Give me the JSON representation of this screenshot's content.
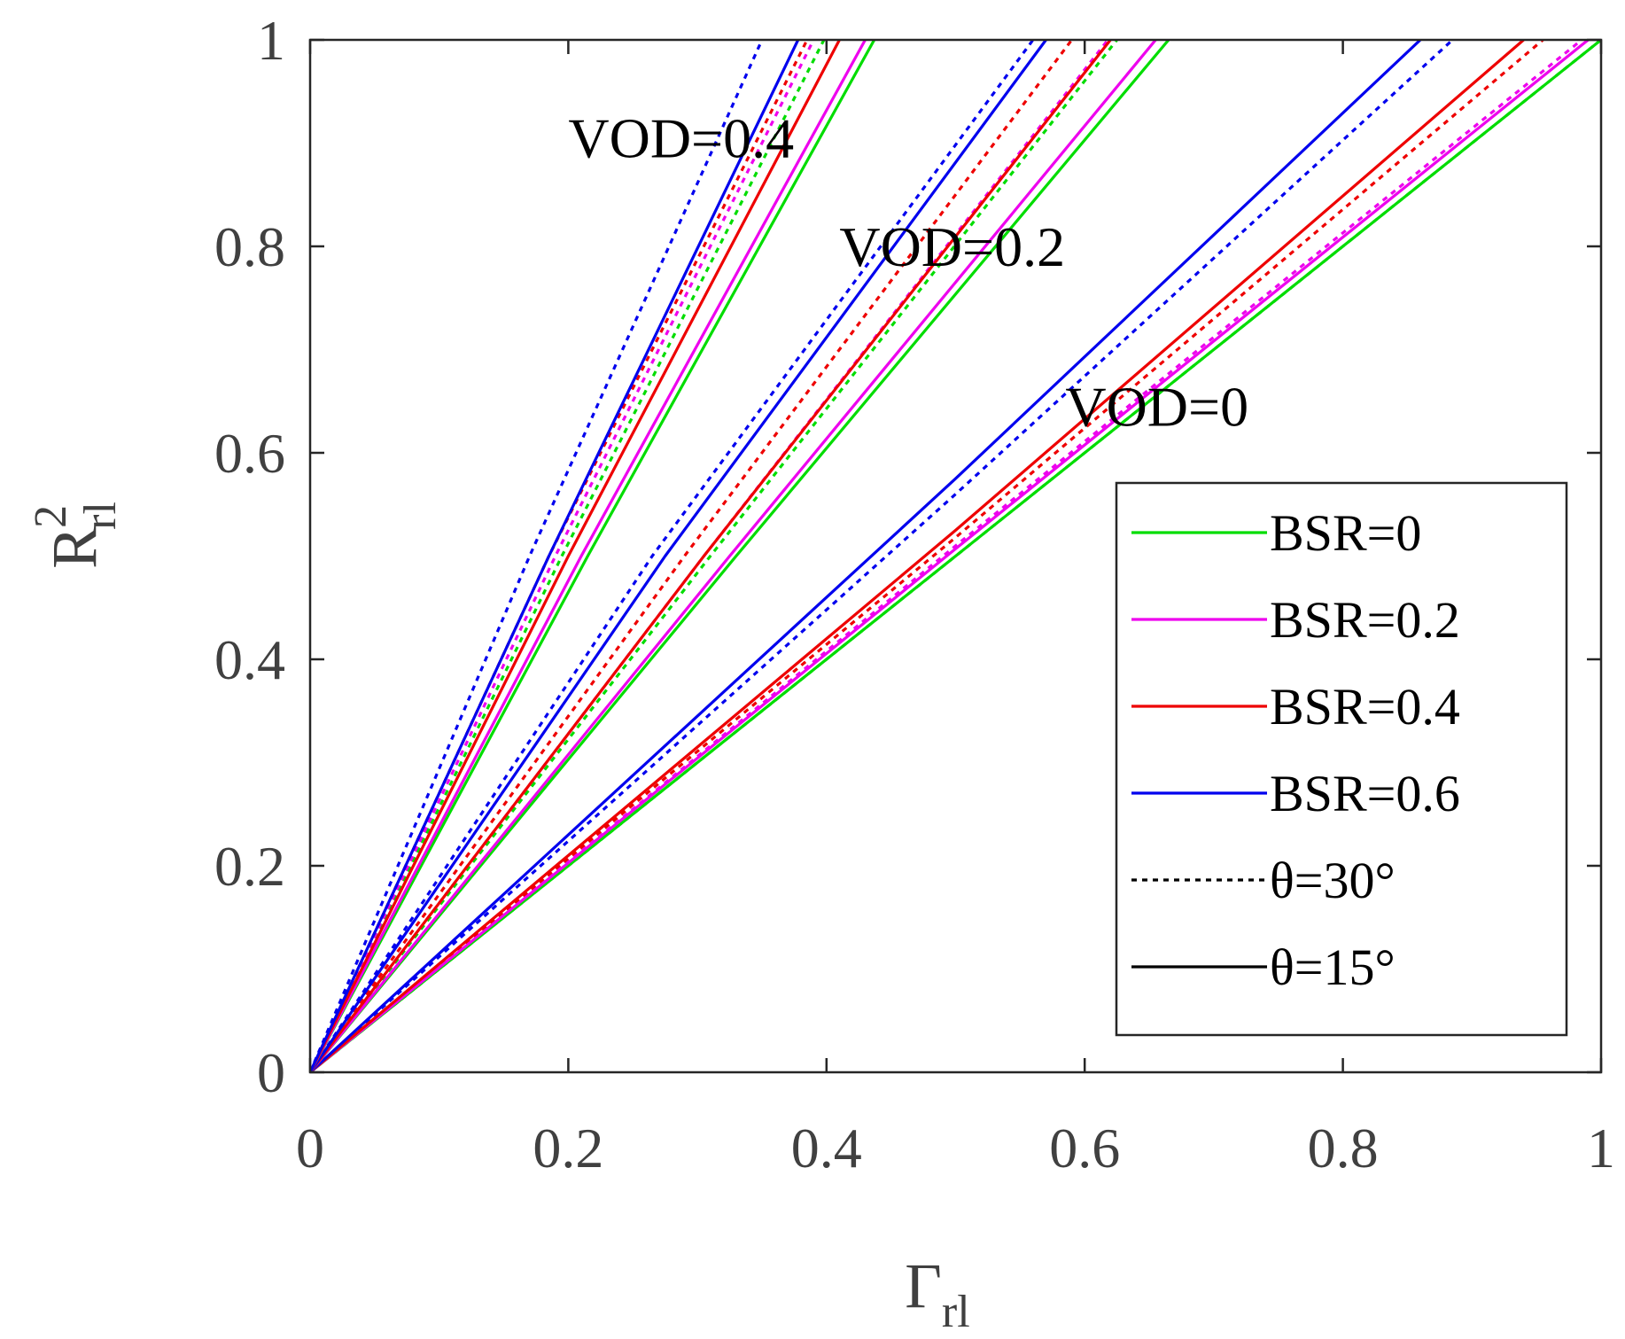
{
  "chart_data": {
    "type": "line",
    "xlabel": {
      "main": "Γ",
      "sub": "rl"
    },
    "ylabel": {
      "main": "R",
      "sup": "2",
      "sub": "rl"
    },
    "xlim": [
      0,
      1
    ],
    "ylim": [
      0,
      1
    ],
    "xticks": [
      0,
      0.2,
      0.4,
      0.6,
      0.8,
      1
    ],
    "yticks": [
      0,
      0.2,
      0.4,
      0.6,
      0.8,
      1
    ],
    "xtick_labels": [
      "0",
      "0.2",
      "0.4",
      "0.6",
      "0.8",
      "1"
    ],
    "ytick_labels": [
      "0",
      "0.2",
      "0.4",
      "0.6",
      "0.8",
      "1"
    ],
    "grid": false,
    "annotations": [
      {
        "text": "VOD=0.4",
        "x": 0.2,
        "y": 0.905
      },
      {
        "text": "VOD=0.2",
        "x": 0.41,
        "y": 0.8
      },
      {
        "text": "VOD=0",
        "x": 0.585,
        "y": 0.645
      }
    ],
    "legend": {
      "position": "lower-right",
      "entries": [
        {
          "label": "BSR=0",
          "color": "#00dd00",
          "style": "solid"
        },
        {
          "label": "BSR=0.2",
          "color": "#ee00ee",
          "style": "solid"
        },
        {
          "label": "BSR=0.4",
          "color": "#ee0000",
          "style": "solid"
        },
        {
          "label": "BSR=0.6",
          "color": "#0000ee",
          "style": "solid"
        },
        {
          "label": "θ=30°",
          "color": "#000000",
          "style": "dotted"
        },
        {
          "label": "θ=15°",
          "color": "#000000",
          "style": "solid"
        }
      ]
    },
    "series": [
      {
        "name": "VOD=0, BSR=0, θ=15°",
        "color": "#00dd00",
        "style": "solid",
        "x": [
          0,
          1
        ],
        "y": [
          0,
          1
        ]
      },
      {
        "name": "VOD=0, BSR=0, θ=30°",
        "color": "#00dd00",
        "style": "dotted",
        "x": [
          0,
          1
        ],
        "y": [
          0,
          1
        ]
      },
      {
        "name": "VOD=0, BSR=0.2, θ=15°",
        "color": "#ee00ee",
        "style": "solid",
        "x": [
          0,
          0.5,
          0.99
        ],
        "y": [
          0,
          0.507,
          1
        ]
      },
      {
        "name": "VOD=0, BSR=0.2, θ=30°",
        "color": "#ee00ee",
        "style": "dotted",
        "x": [
          0,
          0.5,
          0.985
        ],
        "y": [
          0,
          0.51,
          1
        ]
      },
      {
        "name": "VOD=0, BSR=0.4, θ=15°",
        "color": "#ee0000",
        "style": "solid",
        "x": [
          0,
          0.5,
          0.94
        ],
        "y": [
          0,
          0.525,
          1
        ]
      },
      {
        "name": "VOD=0, BSR=0.4, θ=30°",
        "color": "#ee0000",
        "style": "dotted",
        "x": [
          0,
          0.5,
          0.955
        ],
        "y": [
          0,
          0.518,
          1
        ]
      },
      {
        "name": "VOD=0, BSR=0.6, θ=15°",
        "color": "#0000ee",
        "style": "solid",
        "x": [
          0,
          0.5,
          0.86
        ],
        "y": [
          0,
          0.575,
          1
        ]
      },
      {
        "name": "VOD=0, BSR=0.6, θ=30°",
        "color": "#0000ee",
        "style": "dotted",
        "x": [
          0,
          0.5,
          0.885
        ],
        "y": [
          0,
          0.56,
          1
        ]
      },
      {
        "name": "VOD=0.2, BSR=0, θ=15°",
        "color": "#00dd00",
        "style": "solid",
        "x": [
          0,
          0.33,
          0.665
        ],
        "y": [
          0,
          0.5,
          1
        ]
      },
      {
        "name": "VOD=0.2, BSR=0, θ=30°",
        "color": "#00dd00",
        "style": "dotted",
        "x": [
          0,
          0.31,
          0.625
        ],
        "y": [
          0,
          0.5,
          1
        ]
      },
      {
        "name": "VOD=0.2, BSR=0.2, θ=15°",
        "color": "#ee00ee",
        "style": "solid",
        "x": [
          0,
          0.325,
          0.655
        ],
        "y": [
          0,
          0.5,
          1
        ]
      },
      {
        "name": "VOD=0.2, BSR=0.2, θ=30°",
        "color": "#ee00ee",
        "style": "dotted",
        "x": [
          0,
          0.305,
          0.618
        ],
        "y": [
          0,
          0.5,
          1
        ]
      },
      {
        "name": "VOD=0.2, BSR=0.4, θ=15°",
        "color": "#ee0000",
        "style": "solid",
        "x": [
          0,
          0.305,
          0.62
        ],
        "y": [
          0,
          0.5,
          1
        ]
      },
      {
        "name": "VOD=0.2, BSR=0.4, θ=30°",
        "color": "#ee0000",
        "style": "dotted",
        "x": [
          0,
          0.29,
          0.59
        ],
        "y": [
          0,
          0.5,
          1
        ]
      },
      {
        "name": "VOD=0.2, BSR=0.6, θ=15°",
        "color": "#0000ee",
        "style": "solid",
        "x": [
          0,
          0.275,
          0.57
        ],
        "y": [
          0,
          0.5,
          1
        ]
      },
      {
        "name": "VOD=0.2, BSR=0.6, θ=30°",
        "color": "#0000ee",
        "style": "dotted",
        "x": [
          0,
          0.265,
          0.56
        ],
        "y": [
          0,
          0.5,
          1
        ]
      },
      {
        "name": "VOD=0.4, BSR=0, θ=15°",
        "color": "#00dd00",
        "style": "solid",
        "x": [
          0,
          0.215,
          0.437
        ],
        "y": [
          0,
          0.5,
          1
        ]
      },
      {
        "name": "VOD=0.4, BSR=0, θ=30°",
        "color": "#00dd00",
        "style": "dotted",
        "x": [
          0,
          0.195,
          0.398
        ],
        "y": [
          0,
          0.5,
          1
        ]
      },
      {
        "name": "VOD=0.4, BSR=0.2, θ=15°",
        "color": "#ee00ee",
        "style": "solid",
        "x": [
          0,
          0.21,
          0.43
        ],
        "y": [
          0,
          0.5,
          1
        ]
      },
      {
        "name": "VOD=0.4, BSR=0.2, θ=30°",
        "color": "#ee00ee",
        "style": "dotted",
        "x": [
          0,
          0.19,
          0.39
        ],
        "y": [
          0,
          0.5,
          1
        ]
      },
      {
        "name": "VOD=0.4, BSR=0.4, θ=15°",
        "color": "#ee0000",
        "style": "solid",
        "x": [
          0,
          0.2,
          0.41
        ],
        "y": [
          0,
          0.5,
          1
        ]
      },
      {
        "name": "VOD=0.4, BSR=0.4, θ=30°",
        "color": "#ee0000",
        "style": "dotted",
        "x": [
          0,
          0.185,
          0.385
        ],
        "y": [
          0,
          0.5,
          1
        ]
      },
      {
        "name": "VOD=0.4, BSR=0.6, θ=15°",
        "color": "#0000ee",
        "style": "solid",
        "x": [
          0,
          0.185,
          0.378
        ],
        "y": [
          0,
          0.5,
          1
        ]
      },
      {
        "name": "VOD=0.4, BSR=0.6, θ=30°",
        "color": "#0000ee",
        "style": "dotted",
        "x": [
          0,
          0.17,
          0.35
        ],
        "y": [
          0,
          0.5,
          1
        ]
      }
    ]
  }
}
